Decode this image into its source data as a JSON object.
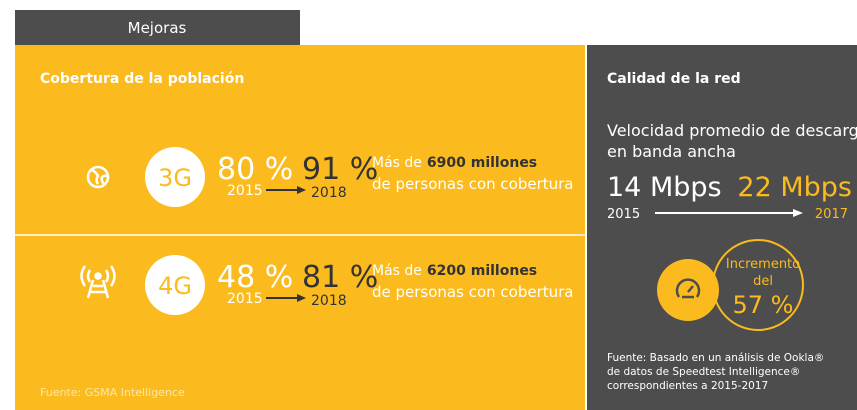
{
  "tab": {
    "label": "Mejoras"
  },
  "coverage": {
    "heading": "Cobertura de la población",
    "rows": [
      {
        "technology": "3G",
        "from_value": "80 %",
        "to_value": "91 %",
        "from_year": "2015",
        "to_year": "2018",
        "description_prefix": "Más de",
        "description_bold": "6900 millones",
        "description_suffix": "de personas con cobertura"
      },
      {
        "technology": "4G",
        "from_value": "48 %",
        "to_value": "81 %",
        "from_year": "2015",
        "to_year": "2018",
        "description_prefix": "Más de",
        "description_bold": "6200 millones",
        "description_suffix": "de personas con cobertura"
      }
    ],
    "source": "Fuente: GSMA Intelligence"
  },
  "network": {
    "heading": "Calidad de la red",
    "subtitle_lines": [
      "Velocidad promedio de descarga",
      "en banda ancha"
    ],
    "from_speed": "14 Mbps",
    "to_speed": "22 Mbps",
    "from_year": "2015",
    "to_year": "2017",
    "increase_label_lines": [
      "Incremento",
      "del"
    ],
    "increase_value": "57 %",
    "source_lines": [
      "Fuente: Basado en un análisis de Ookla®",
      "de datos de Speedtest Intelligence®",
      "correspondientes a 2015-2017"
    ]
  }
}
